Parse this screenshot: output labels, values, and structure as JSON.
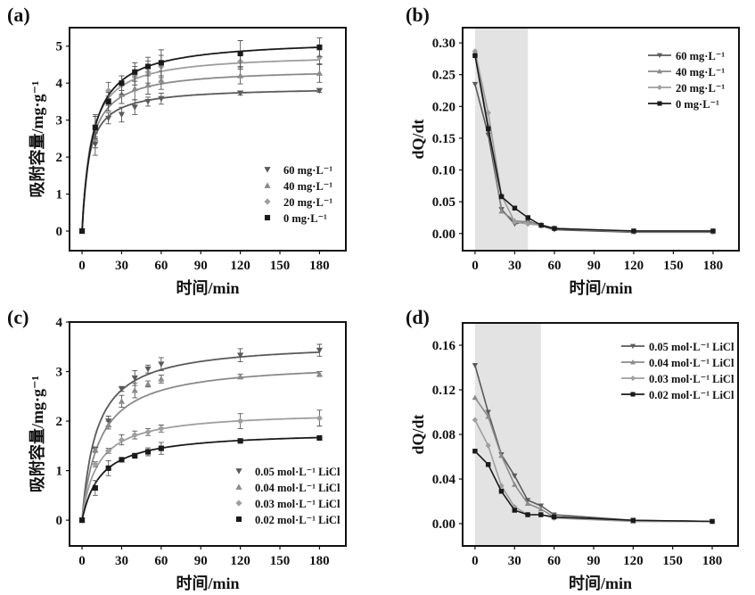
{
  "colors": {
    "s1": "#5a5a5a",
    "s2": "#8a8a8a",
    "s3": "#9e9e9e",
    "s4": "#1a1a1a",
    "shade": "#e3e3e3"
  },
  "chart_data": [
    {
      "panel_label": "(a)",
      "type": "scatter",
      "fit": "pseudo-second-order",
      "xlabel": "时间/min",
      "ylabel": "吸附容量/mg·g⁻¹",
      "xlim": [
        -9.5,
        200
      ],
      "ylim": [
        -0.53,
        5.5
      ],
      "xticks": [
        0,
        30,
        60,
        90,
        120,
        150,
        180
      ],
      "yticks": [
        0,
        1,
        2,
        3,
        4,
        5
      ],
      "legend_position": "lower-right",
      "legend_style": "markers",
      "x": [
        0,
        10,
        20,
        30,
        40,
        50,
        60,
        120,
        180
      ],
      "series": [
        {
          "name": "60 mg·L⁻¹",
          "marker": "triangle-down",
          "color": "#5a5a5a",
          "values": [
            0,
            2.35,
            3.05,
            3.15,
            3.35,
            3.5,
            3.58,
            3.73,
            3.8
          ],
          "error": [
            0,
            0.3,
            0.15,
            0.2,
            0.2,
            0.12,
            0.15,
            0.05,
            0.05
          ],
          "fit_qe": 3.9,
          "fit_k": 0.05
        },
        {
          "name": "40 mg·L⁻¹",
          "marker": "triangle-up",
          "color": "#8a8a8a",
          "values": [
            0,
            2.5,
            3.45,
            3.7,
            3.85,
            3.95,
            4.08,
            4.2,
            4.27
          ],
          "error": [
            0,
            0.25,
            0.2,
            0.25,
            0.3,
            0.25,
            0.25,
            0.22,
            0.25
          ],
          "fit_qe": 4.4,
          "fit_k": 0.036
        },
        {
          "name": "20 mg·L⁻¹",
          "marker": "diamond",
          "color": "#9e9e9e",
          "values": [
            0,
            2.85,
            3.8,
            3.95,
            4.2,
            4.3,
            4.45,
            4.58,
            4.7
          ],
          "error": [
            0,
            0.3,
            0.22,
            0.25,
            0.25,
            0.3,
            0.3,
            0.2,
            0.2
          ],
          "fit_qe": 4.8,
          "fit_k": 0.031
        },
        {
          "name": "0 mg·L⁻¹",
          "marker": "square",
          "color": "#1a1a1a",
          "values": [
            0,
            2.8,
            3.5,
            4.0,
            4.3,
            4.45,
            4.55,
            4.8,
            4.97
          ],
          "error": [
            0,
            0.3,
            0.25,
            0.2,
            0.25,
            0.25,
            0.35,
            0.35,
            0.25
          ],
          "fit_qe": 5.2,
          "fit_k": 0.023
        }
      ]
    },
    {
      "panel_label": "(b)",
      "type": "line",
      "xlabel": "时间/min",
      "ylabel": "dQ/dt",
      "xlim": [
        -9.4,
        199.6
      ],
      "ylim": [
        -0.027,
        0.324
      ],
      "xticks": [
        0,
        30,
        60,
        90,
        120,
        150,
        180
      ],
      "yticks": [
        0.0,
        0.05,
        0.1,
        0.15,
        0.2,
        0.25,
        0.3
      ],
      "ydecimals": 2,
      "shaded_x_range": [
        0,
        40
      ],
      "legend_position": "top-right",
      "legend_style": "lines",
      "x": [
        0,
        10,
        20,
        30,
        40,
        50,
        60,
        120,
        180
      ],
      "series": [
        {
          "name": "60 mg·L⁻¹",
          "marker": "triangle-down",
          "color": "#5a5a5a",
          "values": [
            0.235,
            0.155,
            0.038,
            0.015,
            0.02,
            0.012,
            0.006,
            0.002,
            0.002
          ]
        },
        {
          "name": "40 mg·L⁻¹",
          "marker": "triangle-up",
          "color": "#8a8a8a",
          "values": [
            0.285,
            0.17,
            0.035,
            0.02,
            0.018,
            0.014,
            0.008,
            0.003,
            0.003
          ]
        },
        {
          "name": "20 mg·L⁻¹",
          "marker": "diamond",
          "color": "#9e9e9e",
          "values": [
            0.287,
            0.19,
            0.06,
            0.018,
            0.015,
            0.013,
            0.008,
            0.003,
            0.003
          ]
        },
        {
          "name": "0 mg·L⁻¹",
          "marker": "square",
          "color": "#1a1a1a",
          "values": [
            0.28,
            0.165,
            0.058,
            0.04,
            0.025,
            0.013,
            0.008,
            0.004,
            0.004
          ]
        }
      ]
    },
    {
      "panel_label": "(c)",
      "type": "scatter",
      "fit": "pseudo-second-order",
      "xlabel": "时间/min",
      "ylabel": "吸附容量/mg·g⁻¹",
      "xlim": [
        -9.5,
        200
      ],
      "ylim": [
        -0.52,
        4.0
      ],
      "xticks": [
        0,
        30,
        60,
        90,
        120,
        150,
        180
      ],
      "yticks": [
        0,
        1,
        2,
        3,
        4
      ],
      "legend_position": "lower-right",
      "legend_style": "markers",
      "x": [
        0,
        10,
        20,
        30,
        40,
        50,
        60,
        120,
        180
      ],
      "series": [
        {
          "name": "0.05 mol·L⁻¹ LiCl",
          "marker": "triangle-down",
          "color": "#5a5a5a",
          "values": [
            0,
            1.43,
            2.0,
            2.65,
            2.87,
            3.05,
            3.15,
            3.33,
            3.43
          ],
          "error": [
            0,
            0.05,
            0.1,
            0.05,
            0.15,
            0.08,
            0.13,
            0.13,
            0.12
          ],
          "fit_qe": 3.6,
          "fit_k": 0.025
        },
        {
          "name": "0.04 mol·L⁻¹ LiCl",
          "marker": "triangle-up",
          "color": "#8a8a8a",
          "values": [
            0,
            1.42,
            1.92,
            2.4,
            2.62,
            2.75,
            2.85,
            2.9,
            2.95
          ],
          "error": [
            0,
            0.05,
            0.08,
            0.12,
            0.15,
            0.06,
            0.08,
            0.05,
            0.05
          ],
          "fit_qe": 3.2,
          "fit_k": 0.0235
        },
        {
          "name": "0.03 mol·L⁻¹ LiCl",
          "marker": "diamond",
          "color": "#9e9e9e",
          "values": [
            0,
            1.13,
            1.4,
            1.62,
            1.72,
            1.78,
            1.85,
            2.0,
            2.06
          ],
          "error": [
            0,
            0.05,
            0.05,
            0.1,
            0.08,
            0.07,
            0.07,
            0.15,
            0.16
          ],
          "fit_qe": 2.2,
          "fit_k": 0.039
        },
        {
          "name": "0.02 mol·L⁻¹ LiCl",
          "marker": "square",
          "color": "#1a1a1a",
          "values": [
            0,
            0.65,
            1.05,
            1.22,
            1.3,
            1.38,
            1.45,
            1.6,
            1.66
          ],
          "error": [
            0,
            0.15,
            0.15,
            0.03,
            0.05,
            0.08,
            0.12,
            0.03,
            0.02
          ],
          "fit_qe": 1.8,
          "fit_k": 0.039
        }
      ]
    },
    {
      "panel_label": "(d)",
      "type": "line",
      "xlabel": "时间/min",
      "ylabel": "dQ/dt",
      "xlim": [
        -9.4,
        199.6
      ],
      "ylim": [
        -0.02,
        0.18
      ],
      "xticks": [
        0,
        30,
        60,
        90,
        120,
        150,
        180
      ],
      "yticks": [
        0.0,
        0.04,
        0.08,
        0.12,
        0.16
      ],
      "ydecimals": 2,
      "shaded_x_range": [
        0,
        50
      ],
      "legend_position": "top-right",
      "legend_style": "lines",
      "x": [
        0,
        10,
        20,
        30,
        40,
        50,
        60,
        120,
        180
      ],
      "series": [
        {
          "name": "0.05 mol·L⁻¹ LiCl",
          "marker": "triangle-down",
          "color": "#5a5a5a",
          "values": [
            0.142,
            0.1,
            0.062,
            0.043,
            0.021,
            0.016,
            0.008,
            0.003,
            0.002
          ]
        },
        {
          "name": "0.04 mol·L⁻¹ LiCl",
          "marker": "triangle-up",
          "color": "#8a8a8a",
          "values": [
            0.113,
            0.096,
            0.061,
            0.035,
            0.018,
            0.013,
            0.006,
            0.002,
            0.002
          ]
        },
        {
          "name": "0.03 mol·L⁻¹ LiCl",
          "marker": "diamond",
          "color": "#9e9e9e",
          "values": [
            0.093,
            0.07,
            0.034,
            0.015,
            0.008,
            0.008,
            0.005,
            0.002,
            0.002
          ]
        },
        {
          "name": "0.02 mol·L⁻¹ LiCl",
          "marker": "square",
          "color": "#1a1a1a",
          "values": [
            0.065,
            0.053,
            0.029,
            0.012,
            0.008,
            0.008,
            0.006,
            0.003,
            0.002
          ]
        }
      ]
    }
  ]
}
